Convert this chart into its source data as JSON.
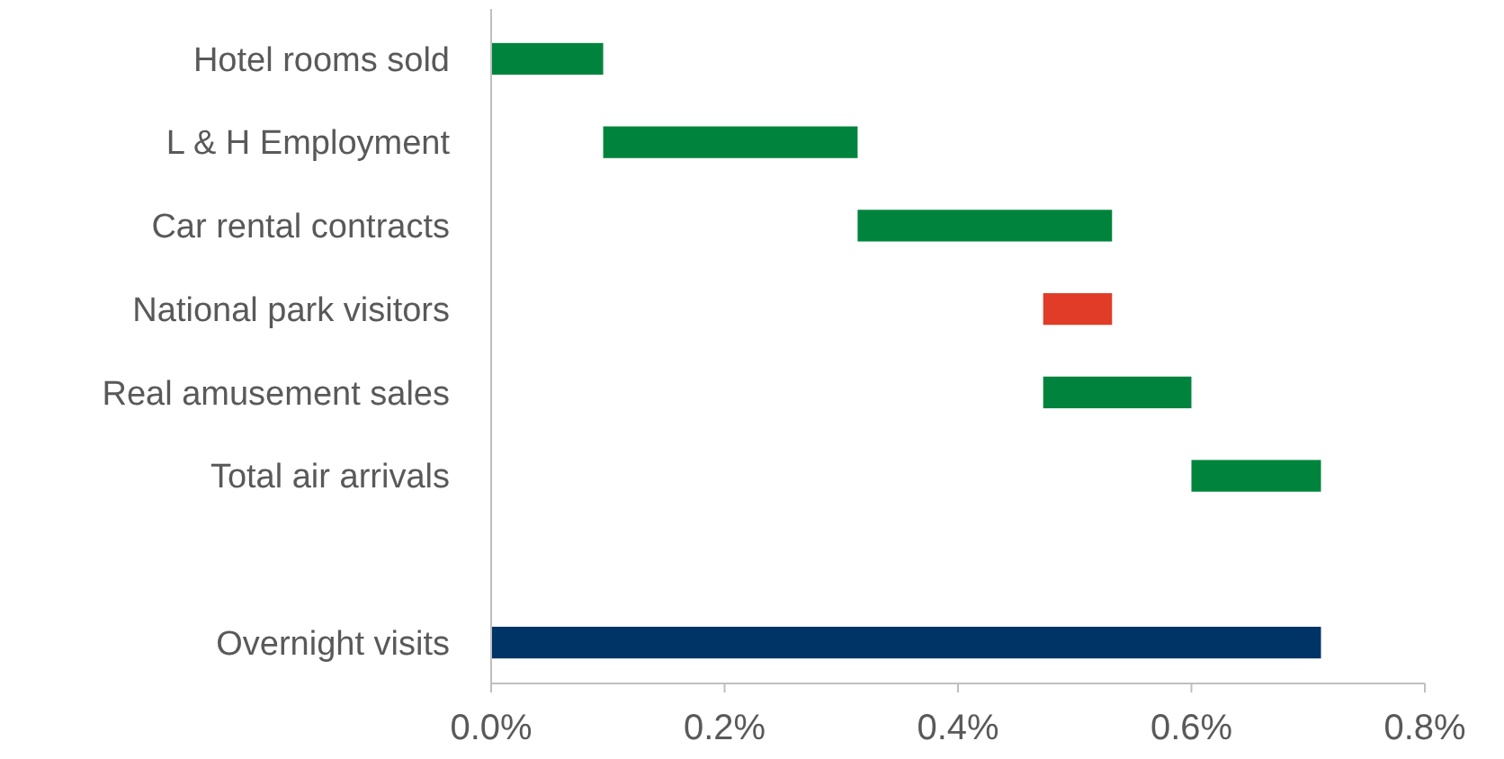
{
  "chart_data": {
    "type": "bar",
    "orientation": "horizontal",
    "categories": [
      "Hotel rooms sold",
      "L & H Employment",
      "Car rental contracts",
      "National park visitors",
      "Real amusement sales",
      "Total air arrivals",
      null,
      "Overnight visits"
    ],
    "values": [
      0.096,
      0.218,
      0.218,
      -0.059,
      0.127,
      0.111,
      null,
      0.711
    ],
    "base": [
      0,
      0.096,
      0.314,
      0.532,
      0.473,
      0.6,
      null,
      0
    ],
    "colors": [
      "#00843d",
      "#00843d",
      "#00843d",
      "#e03c28",
      "#00843d",
      "#00843d",
      null,
      "#003366"
    ],
    "xlim": [
      0,
      0.8
    ],
    "xticks": [
      {
        "value": 0,
        "label": "0.0%"
      },
      {
        "value": 0.2,
        "label": "0.2%"
      },
      {
        "value": 0.4,
        "label": "0.4%"
      },
      {
        "value": 0.6,
        "label": "0.6%"
      },
      {
        "value": 0.8,
        "label": "0.8%"
      }
    ],
    "grid": false
  }
}
